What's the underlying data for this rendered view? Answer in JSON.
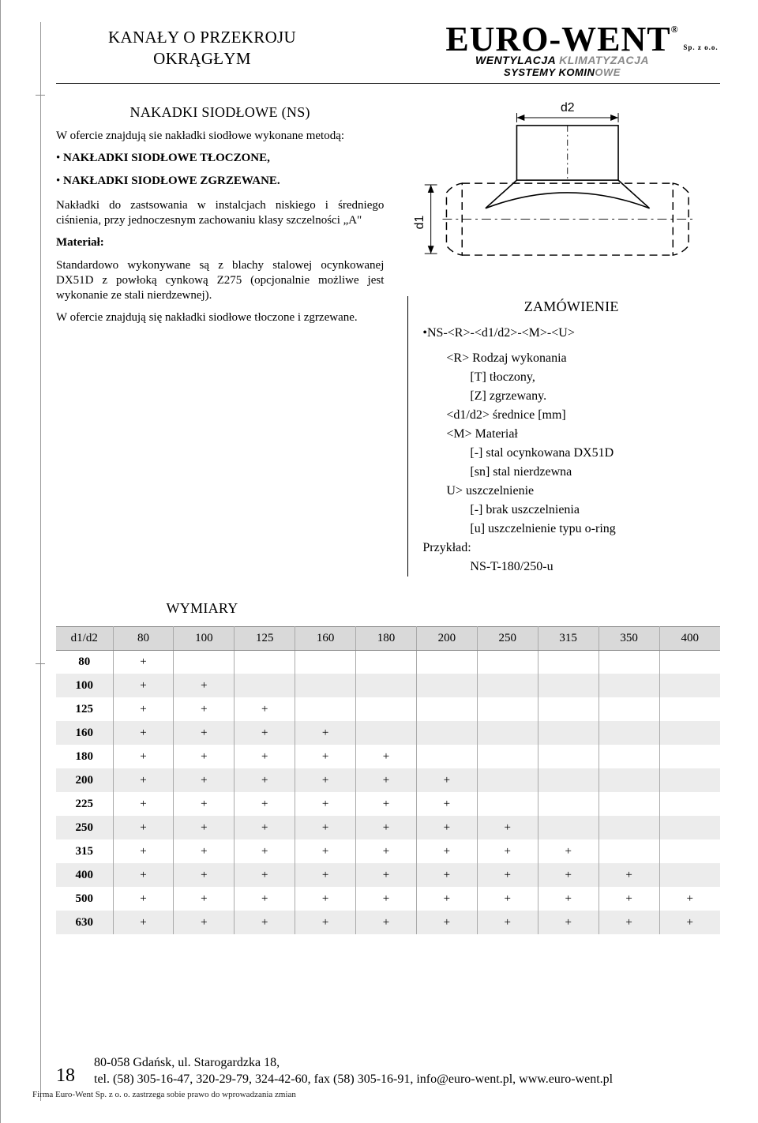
{
  "header": {
    "title_line1": "KANAŁY O PRZEKROJU",
    "title_line2": "OKRĄGŁYM",
    "brand": "EURO-WENT",
    "spzoo": "Sp. z o.o.",
    "sub1a": "WENTYLACJA",
    "sub1b": "KLIMATYZACJA",
    "sub2a": "SYSTEMY KOMIN",
    "sub2b": "OWE"
  },
  "section": {
    "title": "NAKADKI SIODŁOWE (NS)",
    "intro": "W ofercie znajdują sie nakładki siodłowe wyko­nane metodą:",
    "b1": "NAKŁADKI SIODŁOWE TŁOCZONE,",
    "b2": "NAKŁADKI SIODŁOWE ZGRZEWANE.",
    "p2": "Nakładki do zastsowania w instalcjach niskiego i średniego ciśnienia, przy jednoczesnym zachowa­niu klasy szczelności „A\"",
    "mat_head": "Materiał:",
    "mat_body": "Standardowo wykonywane są z blachy sta­lowej ocynkowanej DX51D z powło­ką cynkową Z275 (opcjonalnie możli­we jest wykonanie ze stali nierdzewnej).",
    "p3": "W ofercie znajdują się nakładki siodłowe tłoczo­ne i zgrzewane."
  },
  "diagram": {
    "d1": "d1",
    "d2": "d2"
  },
  "order": {
    "title": "ZAMÓWIENIE",
    "code": "•NS-<R>-<d1/d2>-<M>-<U>",
    "r_head": "<R> Rodzaj wykonania",
    "r_t": "[T] tłoczony,",
    "r_z": "[Z] zgrzewany.",
    "d_head": "<d1/d2> średnice [mm]",
    "m_head": "<M> Materiał",
    "m_dash": "[-]   stal ocynkowana DX51D",
    "m_sn": "[sn] stal nierdzewna",
    "u_head": "U> uszczelnienie",
    "u_dash": "[-] brak uszczelnienia",
    "u_u": "[u] uszczelnienie typu o-ring",
    "przyklad": "Przykład:",
    "przyklad_val": "NS-T-180/250-u"
  },
  "table": {
    "title": "WYMIARY",
    "corner": "d1/d2",
    "cols": [
      "80",
      "100",
      "125",
      "160",
      "180",
      "200",
      "250",
      "315",
      "350",
      "400"
    ],
    "rows": [
      {
        "h": "80",
        "c": [
          "+",
          "",
          "",
          "",
          "",
          "",
          "",
          "",
          "",
          ""
        ]
      },
      {
        "h": "100",
        "c": [
          "+",
          "+",
          "",
          "",
          "",
          "",
          "",
          "",
          "",
          ""
        ]
      },
      {
        "h": "125",
        "c": [
          "+",
          "+",
          "+",
          "",
          "",
          "",
          "",
          "",
          "",
          ""
        ]
      },
      {
        "h": "160",
        "c": [
          "+",
          "+",
          "+",
          "+",
          "",
          "",
          "",
          "",
          "",
          ""
        ]
      },
      {
        "h": "180",
        "c": [
          "+",
          "+",
          "+",
          "+",
          "+",
          "",
          "",
          "",
          "",
          ""
        ]
      },
      {
        "h": "200",
        "c": [
          "+",
          "+",
          "+",
          "+",
          "+",
          "+",
          "",
          "",
          "",
          ""
        ]
      },
      {
        "h": "225",
        "c": [
          "+",
          "+",
          "+",
          "+",
          "+",
          "+",
          "",
          "",
          "",
          ""
        ]
      },
      {
        "h": "250",
        "c": [
          "+",
          "+",
          "+",
          "+",
          "+",
          "+",
          "+",
          "",
          "",
          ""
        ]
      },
      {
        "h": "315",
        "c": [
          "+",
          "+",
          "+",
          "+",
          "+",
          "+",
          "+",
          "+",
          "",
          ""
        ]
      },
      {
        "h": "400",
        "c": [
          "+",
          "+",
          "+",
          "+",
          "+",
          "+",
          "+",
          "+",
          "+",
          ""
        ]
      },
      {
        "h": "500",
        "c": [
          "+",
          "+",
          "+",
          "+",
          "+",
          "+",
          "+",
          "+",
          "+",
          "+"
        ]
      },
      {
        "h": "630",
        "c": [
          "+",
          "+",
          "+",
          "+",
          "+",
          "+",
          "+",
          "+",
          "+",
          "+"
        ]
      }
    ],
    "row_bg_alt": "#ececec",
    "header_bg": "#d9d9d9"
  },
  "footer": {
    "page": "18",
    "addr": "80-058 Gdańsk, ul. Starogardzka 18,",
    "tel": "tel. (58) 305-16-47, 320-29-79, 324-42-60, fax (58) 305-16-91, info@euro-went.pl, www.euro-went.pl",
    "small": "Firma Euro-Went Sp. z o. o. zastrzega sobie prawo do wprowadzania zmian"
  }
}
